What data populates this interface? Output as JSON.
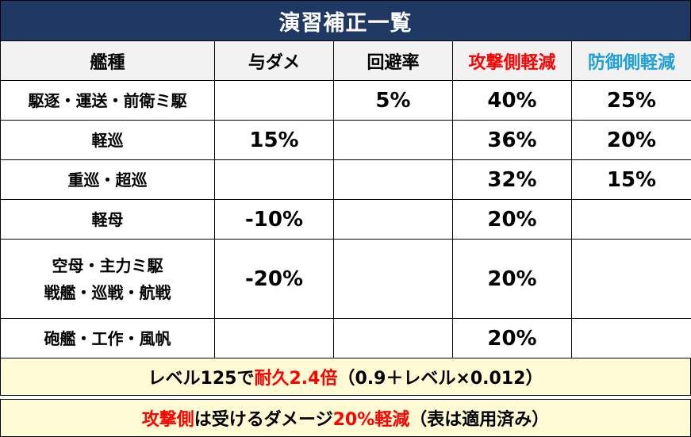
{
  "title": "演習補正一覧",
  "header": {
    "col_ship": "艦種",
    "col_damage": "与ダメ",
    "col_evasion": "回避率",
    "col_attack_reduce": "攻撃側軽減",
    "col_defense_reduce": "防御側軽減"
  },
  "colors": {
    "title_bg": "#1f3864",
    "header_bg": "#f2f2f2",
    "attack_header": "#ff0000",
    "defense_header": "#1e9fd8",
    "positive_value": "#ff0000",
    "negative_value": "#2e75b6",
    "note_bg": "#fffbd5"
  },
  "rows": [
    {
      "ship": [
        "駆逐・運送・前衛ミ駆"
      ],
      "damage": "",
      "evasion": "5%",
      "attack": "40%",
      "defense": "25%"
    },
    {
      "ship": [
        "軽巡"
      ],
      "damage": "15%",
      "evasion": "",
      "attack": "36%",
      "defense": "20%"
    },
    {
      "ship": [
        "重巡・超巡"
      ],
      "damage": "",
      "evasion": "",
      "attack": "32%",
      "defense": "15%"
    },
    {
      "ship": [
        "軽母"
      ],
      "damage": "-10%",
      "evasion": "",
      "attack": "20%",
      "defense": ""
    },
    {
      "ship": [
        "空母・主力ミ駆",
        "戦艦・巡戦・航戦"
      ],
      "damage": "-20%",
      "evasion": "",
      "attack": "20%",
      "defense": ""
    },
    {
      "ship": [
        "砲艦・工作・風帆"
      ],
      "damage": "",
      "evasion": "",
      "attack": "20%",
      "defense": ""
    }
  ],
  "note1": {
    "part1": "レベル125で",
    "part2": "耐久2.4倍",
    "part3": "（0.9＋レベル×0.012）"
  },
  "note2": {
    "part1": "攻撃側",
    "part2": "は受けるダメージ",
    "part3": "20%軽減",
    "part4": "（表は適用済み）"
  }
}
